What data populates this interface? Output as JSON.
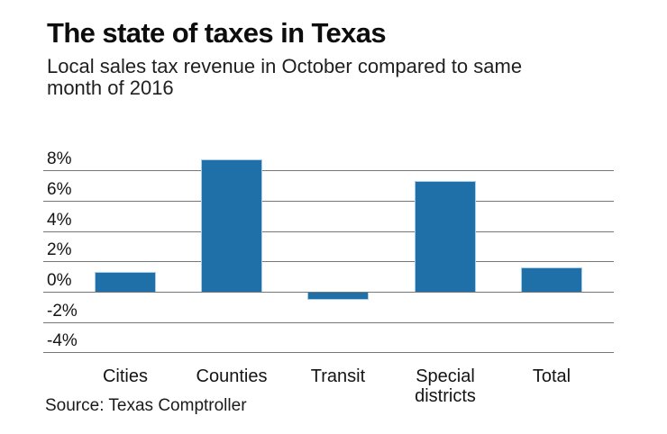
{
  "header": {
    "title": "The state of taxes in Texas",
    "subtitle_lines": [
      "Local sales tax revenue in October compared to same",
      "month of 2016"
    ]
  },
  "footer": {
    "source": "Source: Texas Comptroller"
  },
  "chart_data": {
    "type": "bar",
    "title": "The state of taxes in Texas",
    "subtitle": "Local sales tax revenue in October compared to same month of 2016",
    "source": "Source: Texas Comptroller",
    "categories": [
      "Cities",
      "Counties",
      "Transit",
      "Special districts",
      "Total"
    ],
    "values": [
      1.3,
      8.7,
      -0.5,
      7.3,
      1.6
    ],
    "unit": "%",
    "xlabel": "",
    "ylabel": "",
    "yticks": [
      8,
      6,
      4,
      2,
      0,
      -2,
      -4
    ],
    "ytick_labels": [
      "8%",
      "6%",
      "4%",
      "2%",
      "0%",
      "-2%",
      "-4%"
    ],
    "ylim": [
      -4.7,
      9.4
    ],
    "grid": "horizontal",
    "legend": "none",
    "colors": {
      "bar_fill": "#1f6fa8",
      "bar_edge": "#a9cfe6",
      "gridline": "#767676",
      "text": "#141414",
      "background": "#ffffff"
    }
  }
}
